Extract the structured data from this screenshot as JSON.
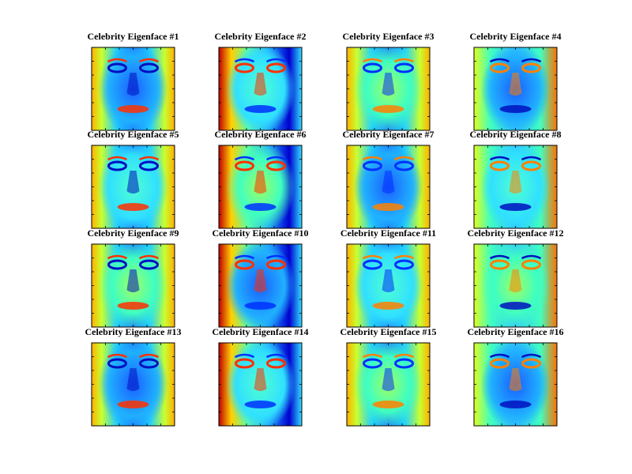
{
  "panels": [
    {
      "title": "Celebrity Eigenface #1"
    },
    {
      "title": "Celebrity Eigenface #2"
    },
    {
      "title": "Celebrity Eigenface #3"
    },
    {
      "title": "Celebrity Eigenface #4"
    },
    {
      "title": "Celebrity Eigenface #5"
    },
    {
      "title": "Celebrity Eigenface #6"
    },
    {
      "title": "Celebrity Eigenface #7"
    },
    {
      "title": "Celebrity Eigenface #8"
    },
    {
      "title": "Celebrity Eigenface #9"
    },
    {
      "title": "Celebrity Eigenface #10"
    },
    {
      "title": "Celebrity Eigenface #11"
    },
    {
      "title": "Celebrity Eigenface #12"
    },
    {
      "title": "Celebrity Eigenface #13"
    },
    {
      "title": "Celebrity Eigenface #14"
    },
    {
      "title": "Celebrity Eigenface #15"
    },
    {
      "title": "Celebrity Eigenface #16"
    }
  ]
}
